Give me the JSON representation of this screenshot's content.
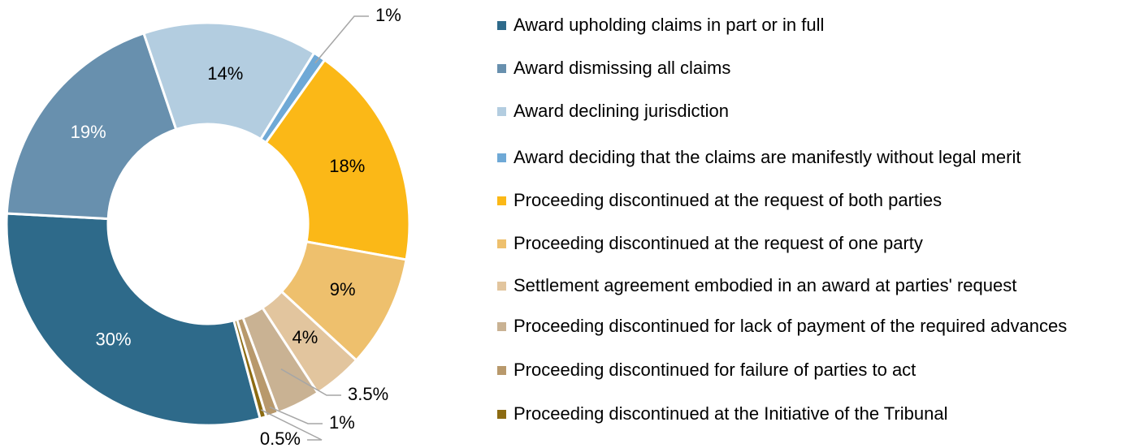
{
  "chart_data": {
    "type": "donut",
    "categories": [
      "Award upholding claims in part or in full",
      "Award dismissing all claims",
      "Award declining jurisdiction",
      "Award deciding that the claims are manifestly without legal merit",
      "Proceeding discontinued at the request of both parties",
      "Proceeding discontinued at the request of one party",
      "Settlement agreement embodied in an award at parties' request",
      "Proceeding discontinued for lack of payment of the required advances",
      "Proceeding discontinued for failure of parties to act",
      "Proceeding discontinued at the Initiative of the Tribunal"
    ],
    "values": [
      30,
      19,
      14,
      1,
      18,
      9,
      4,
      3.5,
      1,
      0.5
    ],
    "value_labels": [
      "30%",
      "19%",
      "14%",
      "1%",
      "18%",
      "9%",
      "4%",
      "3.5%",
      "1%",
      "0.5%"
    ],
    "colors": [
      "#2e6a8a",
      "#6890ae",
      "#b3cde0",
      "#6fa9d6",
      "#fbb817",
      "#eec06d",
      "#e2c59e",
      "#c9b293",
      "#b8996c",
      "#8c6b12"
    ],
    "legend": "right"
  }
}
